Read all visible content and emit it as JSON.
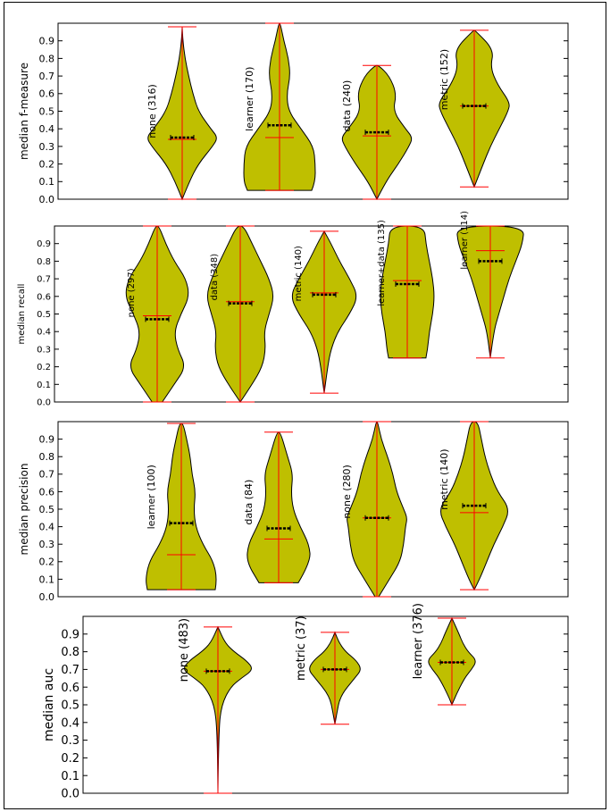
{
  "chart_data": [
    {
      "type": "violin",
      "ylabel": "median f-measure",
      "yticks": [
        "0.0",
        "0.1",
        "0.2",
        "0.3",
        "0.4",
        "0.5",
        "0.6",
        "0.7",
        "0.8",
        "0.9"
      ],
      "ylim": [
        0,
        1.0
      ],
      "groups": [
        {
          "label": "none (316)",
          "min": 0.0,
          "max": 0.98,
          "median": 0.35,
          "mean": 0.34,
          "profile": [
            [
              0.0,
              0.0
            ],
            [
              0.1,
              0.2
            ],
            [
              0.2,
              0.45
            ],
            [
              0.3,
              0.85
            ],
            [
              0.35,
              1.0
            ],
            [
              0.4,
              0.8
            ],
            [
              0.5,
              0.45
            ],
            [
              0.6,
              0.3
            ],
            [
              0.7,
              0.18
            ],
            [
              0.8,
              0.08
            ],
            [
              0.9,
              0.02
            ],
            [
              0.98,
              0.0
            ]
          ]
        },
        {
          "label": "learner (170)",
          "min": 0.05,
          "max": 1.0,
          "median": 0.42,
          "mean": 0.35,
          "profile": [
            [
              0.05,
              0.9
            ],
            [
              0.1,
              1.0
            ],
            [
              0.2,
              1.0
            ],
            [
              0.3,
              0.95
            ],
            [
              0.4,
              0.6
            ],
            [
              0.5,
              0.25
            ],
            [
              0.6,
              0.2
            ],
            [
              0.7,
              0.3
            ],
            [
              0.8,
              0.25
            ],
            [
              0.9,
              0.12
            ],
            [
              1.0,
              0.02
            ]
          ]
        },
        {
          "label": "data (240)",
          "min": 0.0,
          "max": 0.76,
          "median": 0.38,
          "mean": 0.36,
          "profile": [
            [
              0.0,
              0.0
            ],
            [
              0.1,
              0.25
            ],
            [
              0.2,
              0.6
            ],
            [
              0.3,
              0.9
            ],
            [
              0.35,
              1.0
            ],
            [
              0.4,
              0.8
            ],
            [
              0.5,
              0.45
            ],
            [
              0.6,
              0.55
            ],
            [
              0.7,
              0.35
            ],
            [
              0.76,
              0.05
            ]
          ]
        },
        {
          "label": "metric (152)",
          "min": 0.07,
          "max": 0.96,
          "median": 0.53,
          "mean": 0.53,
          "profile": [
            [
              0.07,
              0.0
            ],
            [
              0.2,
              0.25
            ],
            [
              0.3,
              0.45
            ],
            [
              0.4,
              0.7
            ],
            [
              0.5,
              0.95
            ],
            [
              0.55,
              1.0
            ],
            [
              0.65,
              0.65
            ],
            [
              0.75,
              0.45
            ],
            [
              0.85,
              0.55
            ],
            [
              0.96,
              0.02
            ]
          ]
        }
      ]
    },
    {
      "type": "violin",
      "ylabel": "median recall",
      "yticks": [
        "0.0",
        "0.1",
        "0.2",
        "0.3",
        "0.4",
        "0.5",
        "0.6",
        "0.7",
        "0.8",
        "0.9"
      ],
      "ylim": [
        0,
        1.0
      ],
      "groups": [
        {
          "label": "none (297)",
          "min": 0.0,
          "max": 1.0,
          "median": 0.47,
          "mean": 0.49,
          "profile": [
            [
              0.0,
              0.15
            ],
            [
              0.1,
              0.5
            ],
            [
              0.2,
              0.85
            ],
            [
              0.3,
              0.6
            ],
            [
              0.4,
              0.5
            ],
            [
              0.5,
              0.7
            ],
            [
              0.6,
              0.95
            ],
            [
              0.7,
              0.85
            ],
            [
              0.8,
              0.5
            ],
            [
              0.9,
              0.25
            ],
            [
              1.0,
              0.05
            ]
          ]
        },
        {
          "label": "data (348)",
          "min": 0.0,
          "max": 1.0,
          "median": 0.56,
          "mean": 0.57,
          "profile": [
            [
              0.0,
              0.0
            ],
            [
              0.1,
              0.35
            ],
            [
              0.2,
              0.65
            ],
            [
              0.3,
              0.75
            ],
            [
              0.4,
              0.7
            ],
            [
              0.5,
              0.85
            ],
            [
              0.6,
              1.0
            ],
            [
              0.7,
              0.85
            ],
            [
              0.8,
              0.6
            ],
            [
              0.9,
              0.35
            ],
            [
              1.0,
              0.1
            ]
          ]
        },
        {
          "label": "metric (140)",
          "min": 0.05,
          "max": 0.97,
          "median": 0.61,
          "mean": 0.62,
          "profile": [
            [
              0.05,
              0.0
            ],
            [
              0.2,
              0.1
            ],
            [
              0.3,
              0.2
            ],
            [
              0.4,
              0.4
            ],
            [
              0.5,
              0.75
            ],
            [
              0.6,
              1.0
            ],
            [
              0.7,
              0.75
            ],
            [
              0.8,
              0.45
            ],
            [
              0.9,
              0.2
            ],
            [
              0.97,
              0.0
            ]
          ]
        },
        {
          "label": "learner+data (135)",
          "min": 0.25,
          "max": 1.0,
          "median": 0.67,
          "mean": 0.69,
          "profile": [
            [
              0.25,
              0.55
            ],
            [
              0.3,
              0.6
            ],
            [
              0.4,
              0.65
            ],
            [
              0.5,
              0.75
            ],
            [
              0.6,
              0.8
            ],
            [
              0.7,
              0.75
            ],
            [
              0.8,
              0.65
            ],
            [
              0.9,
              0.55
            ],
            [
              1.0,
              0.5
            ]
          ]
        },
        {
          "label": "learner (114)",
          "min": 0.25,
          "max": 1.0,
          "median": 0.8,
          "mean": 0.86,
          "profile": [
            [
              0.25,
              0.0
            ],
            [
              0.4,
              0.1
            ],
            [
              0.5,
              0.25
            ],
            [
              0.6,
              0.4
            ],
            [
              0.7,
              0.55
            ],
            [
              0.8,
              0.75
            ],
            [
              0.9,
              0.95
            ],
            [
              1.0,
              1.0
            ]
          ]
        }
      ]
    },
    {
      "type": "violin",
      "ylabel": "median precision",
      "yticks": [
        "0.0",
        "0.1",
        "0.2",
        "0.3",
        "0.4",
        "0.5",
        "0.6",
        "0.7",
        "0.8",
        "0.9"
      ],
      "ylim": [
        0,
        1.0
      ],
      "groups": [
        {
          "label": "learner (100)",
          "min": 0.04,
          "max": 0.99,
          "median": 0.42,
          "mean": 0.24,
          "profile": [
            [
              0.04,
              0.95
            ],
            [
              0.1,
              1.0
            ],
            [
              0.2,
              0.9
            ],
            [
              0.3,
              0.6
            ],
            [
              0.4,
              0.4
            ],
            [
              0.5,
              0.35
            ],
            [
              0.6,
              0.4
            ],
            [
              0.7,
              0.3
            ],
            [
              0.8,
              0.25
            ],
            [
              0.9,
              0.15
            ],
            [
              0.99,
              0.05
            ]
          ]
        },
        {
          "label": "data (84)",
          "min": 0.08,
          "max": 0.94,
          "median": 0.39,
          "mean": 0.33,
          "profile": [
            [
              0.08,
              0.55
            ],
            [
              0.2,
              0.9
            ],
            [
              0.3,
              0.85
            ],
            [
              0.4,
              0.6
            ],
            [
              0.5,
              0.4
            ],
            [
              0.6,
              0.35
            ],
            [
              0.7,
              0.4
            ],
            [
              0.8,
              0.25
            ],
            [
              0.94,
              0.05
            ]
          ]
        },
        {
          "label": "none (280)",
          "min": 0.0,
          "max": 1.0,
          "median": 0.45,
          "mean": 0.45,
          "profile": [
            [
              0.0,
              0.05
            ],
            [
              0.1,
              0.35
            ],
            [
              0.2,
              0.65
            ],
            [
              0.3,
              0.75
            ],
            [
              0.4,
              0.8
            ],
            [
              0.45,
              0.85
            ],
            [
              0.5,
              0.75
            ],
            [
              0.6,
              0.55
            ],
            [
              0.7,
              0.45
            ],
            [
              0.8,
              0.3
            ],
            [
              0.9,
              0.12
            ],
            [
              1.0,
              0.02
            ]
          ]
        },
        {
          "label": "metric (140)",
          "min": 0.04,
          "max": 1.0,
          "median": 0.52,
          "mean": 0.48,
          "profile": [
            [
              0.04,
              0.0
            ],
            [
              0.1,
              0.15
            ],
            [
              0.2,
              0.35
            ],
            [
              0.3,
              0.55
            ],
            [
              0.4,
              0.8
            ],
            [
              0.5,
              1.0
            ],
            [
              0.6,
              0.65
            ],
            [
              0.7,
              0.45
            ],
            [
              0.8,
              0.3
            ],
            [
              0.9,
              0.2
            ],
            [
              1.0,
              0.1
            ]
          ]
        }
      ]
    },
    {
      "type": "violin",
      "ylabel": "median auc",
      "yticks": [
        "0.0",
        "0.1",
        "0.2",
        "0.3",
        "0.4",
        "0.5",
        "0.6",
        "0.7",
        "0.8",
        "0.9"
      ],
      "ylim": [
        0,
        1.0
      ],
      "groups": [
        {
          "label": "none (483)",
          "min": 0.0,
          "max": 0.94,
          "median": 0.69,
          "mean": 0.69,
          "profile": [
            [
              0.0,
              0.0
            ],
            [
              0.35,
              0.02
            ],
            [
              0.5,
              0.1
            ],
            [
              0.6,
              0.35
            ],
            [
              0.65,
              0.65
            ],
            [
              0.7,
              1.0
            ],
            [
              0.75,
              0.8
            ],
            [
              0.8,
              0.45
            ],
            [
              0.85,
              0.2
            ],
            [
              0.94,
              0.0
            ]
          ]
        },
        {
          "label": "metric (37)",
          "min": 0.39,
          "max": 0.91,
          "median": 0.7,
          "mean": 0.7,
          "profile": [
            [
              0.39,
              0.0
            ],
            [
              0.45,
              0.05
            ],
            [
              0.55,
              0.15
            ],
            [
              0.65,
              0.55
            ],
            [
              0.7,
              0.75
            ],
            [
              0.75,
              0.6
            ],
            [
              0.8,
              0.3
            ],
            [
              0.85,
              0.12
            ],
            [
              0.91,
              0.0
            ]
          ]
        },
        {
          "label": "learner (376)",
          "min": 0.5,
          "max": 0.99,
          "median": 0.74,
          "mean": 0.74,
          "profile": [
            [
              0.5,
              0.0
            ],
            [
              0.55,
              0.1
            ],
            [
              0.65,
              0.35
            ],
            [
              0.7,
              0.55
            ],
            [
              0.75,
              0.7
            ],
            [
              0.8,
              0.45
            ],
            [
              0.85,
              0.3
            ],
            [
              0.9,
              0.2
            ],
            [
              0.99,
              0.0
            ]
          ]
        }
      ]
    }
  ]
}
